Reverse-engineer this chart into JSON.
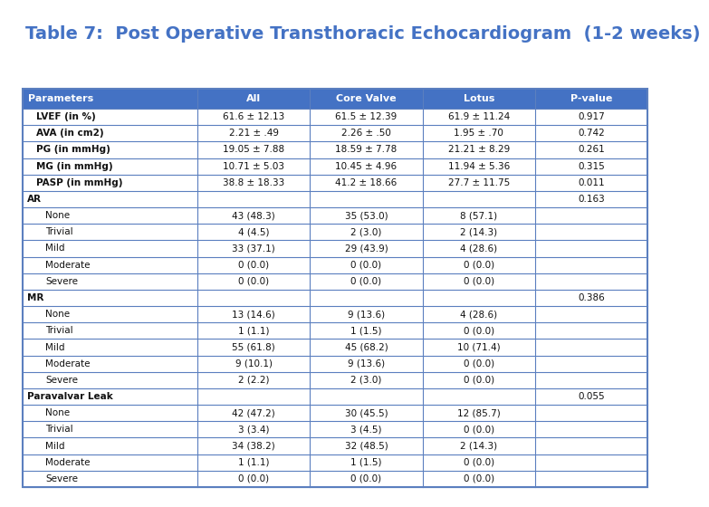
{
  "title": "Table 7:  Post Operative Transthoracic Echocardiogram  (1-2 weeks)",
  "title_color": "#4472C4",
  "header_bg": "#4472C4",
  "border_color": "#5B7FBF",
  "columns": [
    "Parameters",
    "All",
    "Core Valve",
    "Lotus",
    "P-value"
  ],
  "rows": [
    {
      "label": "LVEF (in %)",
      "indent": 1,
      "all": "61.6 ± 12.13",
      "core": "61.5 ± 12.39",
      "lotus": "61.9 ± 11.24",
      "pval": "0.917"
    },
    {
      "label": "AVA (in cm2)",
      "indent": 1,
      "all": "2.21 ± .49",
      "core": "2.26 ± .50",
      "lotus": "1.95 ± .70",
      "pval": "0.742"
    },
    {
      "label": "PG (in mmHg)",
      "indent": 1,
      "all": "19.05 ± 7.88",
      "core": "18.59 ± 7.78",
      "lotus": "21.21 ± 8.29",
      "pval": "0.261"
    },
    {
      "label": "MG (in mmHg)",
      "indent": 1,
      "all": "10.71 ± 5.03",
      "core": "10.45 ± 4.96",
      "lotus": "11.94 ± 5.36",
      "pval": "0.315"
    },
    {
      "label": "PASP (in mmHg)",
      "indent": 1,
      "all": "38.8 ± 18.33",
      "core": "41.2 ± 18.66",
      "lotus": "27.7 ± 11.75",
      "pval": "0.011"
    },
    {
      "label": "AR",
      "indent": 0,
      "all": "",
      "core": "",
      "lotus": "",
      "pval": "0.163"
    },
    {
      "label": "None",
      "indent": 2,
      "all": "43 (48.3)",
      "core": "35 (53.0)",
      "lotus": "8 (57.1)",
      "pval": ""
    },
    {
      "label": "Trivial",
      "indent": 2,
      "all": "4 (4.5)",
      "core": "2 (3.0)",
      "lotus": "2 (14.3)",
      "pval": ""
    },
    {
      "label": "Mild",
      "indent": 2,
      "all": "33 (37.1)",
      "core": "29 (43.9)",
      "lotus": "4 (28.6)",
      "pval": ""
    },
    {
      "label": "Moderate",
      "indent": 2,
      "all": "0 (0.0)",
      "core": "0 (0.0)",
      "lotus": "0 (0.0)",
      "pval": ""
    },
    {
      "label": "Severe",
      "indent": 2,
      "all": "0 (0.0)",
      "core": "0 (0.0)",
      "lotus": "0 (0.0)",
      "pval": ""
    },
    {
      "label": "MR",
      "indent": 0,
      "all": "",
      "core": "",
      "lotus": "",
      "pval": "0.386"
    },
    {
      "label": "None",
      "indent": 2,
      "all": "13 (14.6)",
      "core": "9 (13.6)",
      "lotus": "4 (28.6)",
      "pval": ""
    },
    {
      "label": "Trivial",
      "indent": 2,
      "all": "1 (1.1)",
      "core": "1 (1.5)",
      "lotus": "0 (0.0)",
      "pval": ""
    },
    {
      "label": "Mild",
      "indent": 2,
      "all": "55 (61.8)",
      "core": "45 (68.2)",
      "lotus": "10 (71.4)",
      "pval": ""
    },
    {
      "label": "Moderate",
      "indent": 2,
      "all": "9 (10.1)",
      "core": "9 (13.6)",
      "lotus": "0 (0.0)",
      "pval": ""
    },
    {
      "label": "Severe",
      "indent": 2,
      "all": "2 (2.2)",
      "core": "2 (3.0)",
      "lotus": "0 (0.0)",
      "pval": ""
    },
    {
      "label": "Paravalvar Leak",
      "indent": 0,
      "all": "",
      "core": "",
      "lotus": "",
      "pval": "0.055"
    },
    {
      "label": "None",
      "indent": 2,
      "all": "42 (47.2)",
      "core": "30 (45.5)",
      "lotus": "12 (85.7)",
      "pval": ""
    },
    {
      "label": "Trivial",
      "indent": 2,
      "all": "3 (3.4)",
      "core": "3 (4.5)",
      "lotus": "0 (0.0)",
      "pval": ""
    },
    {
      "label": "Mild",
      "indent": 2,
      "all": "34 (38.2)",
      "core": "32 (48.5)",
      "lotus": "2 (14.3)",
      "pval": ""
    },
    {
      "label": "Moderate",
      "indent": 2,
      "all": "1 (1.1)",
      "core": "1 (1.5)",
      "lotus": "0 (0.0)",
      "pval": ""
    },
    {
      "label": "Severe",
      "indent": 2,
      "all": "0 (0.0)",
      "core": "0 (0.0)",
      "lotus": "0 (0.0)",
      "pval": ""
    }
  ]
}
